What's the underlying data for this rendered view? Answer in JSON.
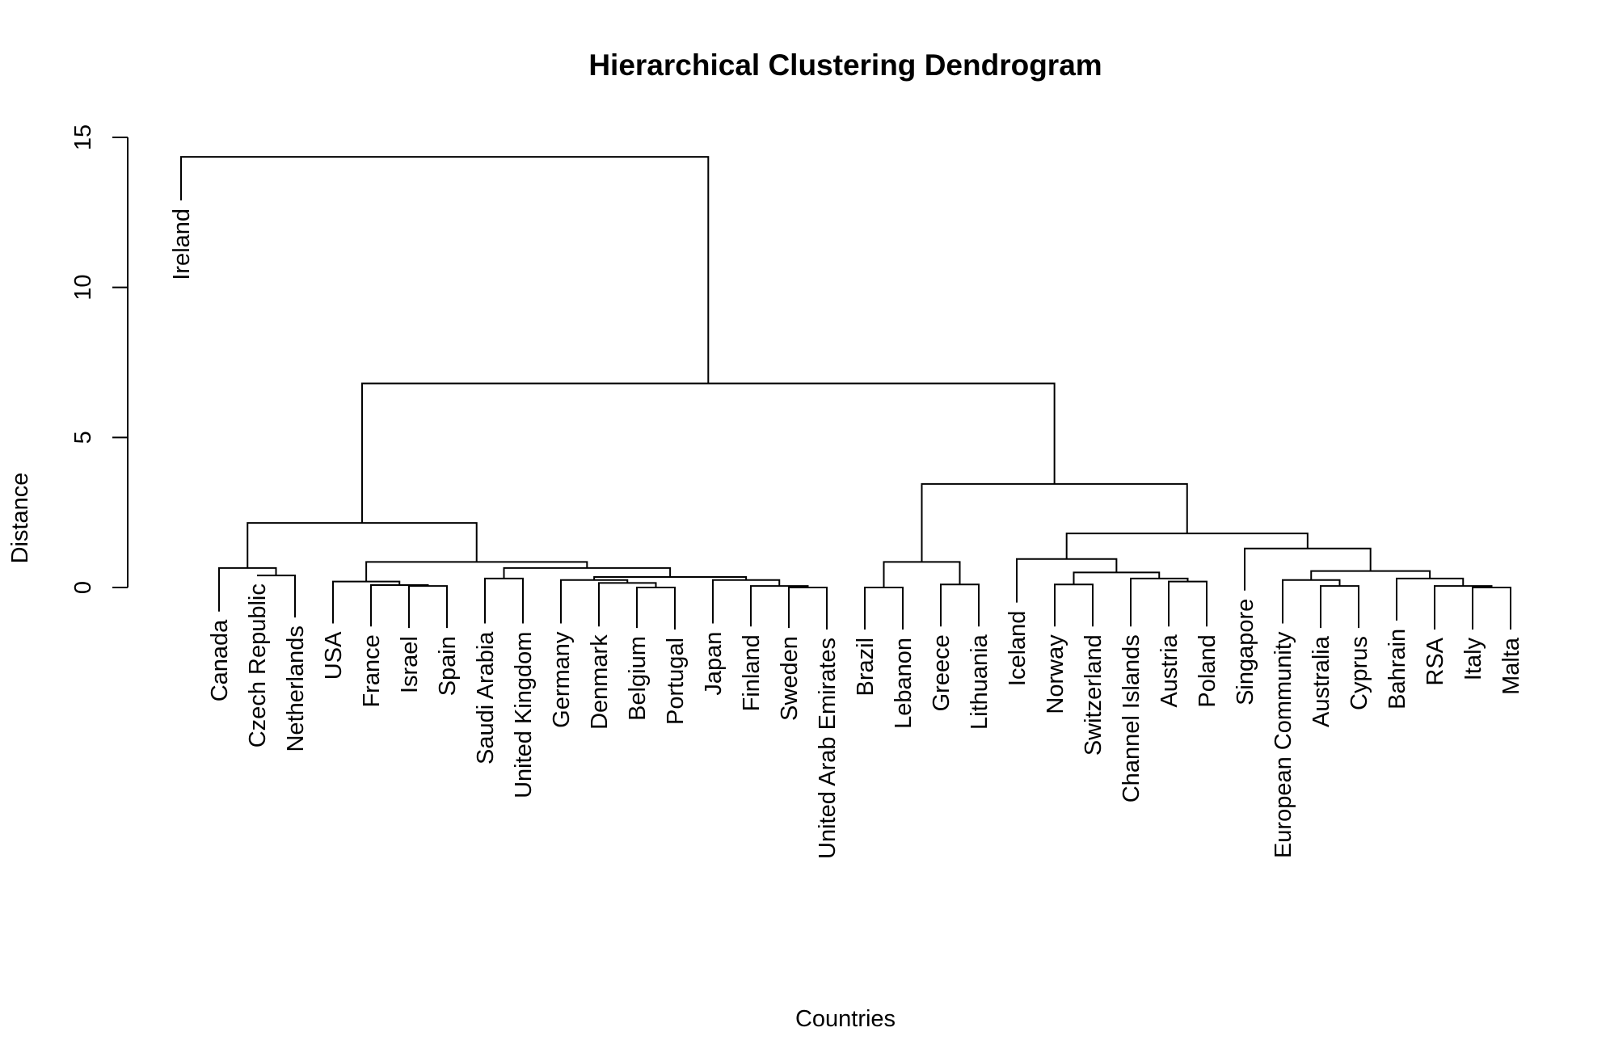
{
  "chart_data": {
    "type": "dendrogram",
    "title": "Hierarchical Clustering Dendrogram",
    "xlabel": "Countries",
    "ylabel": "Distance",
    "ylim": [
      0,
      15
    ],
    "yticks": [
      0,
      5,
      10,
      15
    ],
    "leaves": [
      {
        "label": "Ireland",
        "height": 12.9
      },
      {
        "label": "Canada",
        "height": -0.8
      },
      {
        "label": "Czech Republic",
        "height": 0.4
      },
      {
        "label": "Netherlands",
        "height": -1.0
      },
      {
        "label": "USA",
        "height": -1.2
      },
      {
        "label": "France",
        "height": -1.3
      },
      {
        "label": "Israel",
        "height": -1.35
      },
      {
        "label": "Spain",
        "height": -1.35
      },
      {
        "label": "Saudi Arabia",
        "height": -1.2
      },
      {
        "label": "United Kingdom",
        "height": -1.2
      },
      {
        "label": "Germany",
        "height": -1.2
      },
      {
        "label": "Denmark",
        "height": -1.3
      },
      {
        "label": "Belgium",
        "height": -1.35
      },
      {
        "label": "Portugal",
        "height": -1.4
      },
      {
        "label": "Japan",
        "height": -1.2
      },
      {
        "label": "Finland",
        "height": -1.3
      },
      {
        "label": "Sweden",
        "height": -1.35
      },
      {
        "label": "United Arab Emirates",
        "height": -1.4
      },
      {
        "label": "Brazil",
        "height": -1.4
      },
      {
        "label": "Lebanon",
        "height": -1.4
      },
      {
        "label": "Greece",
        "height": -1.3
      },
      {
        "label": "Lithuania",
        "height": -1.3
      },
      {
        "label": "Iceland",
        "height": -0.5
      },
      {
        "label": "Norway",
        "height": -1.3
      },
      {
        "label": "Switzerland",
        "height": -1.3
      },
      {
        "label": "Channel Islands",
        "height": -1.3
      },
      {
        "label": "Austria",
        "height": -1.3
      },
      {
        "label": "Poland",
        "height": -1.3
      },
      {
        "label": "Singapore",
        "height": -0.1
      },
      {
        "label": "European Community",
        "height": -1.2
      },
      {
        "label": "Australia",
        "height": -1.35
      },
      {
        "label": "Cyprus",
        "height": -1.35
      },
      {
        "label": "Bahrain",
        "height": -1.1
      },
      {
        "label": "RSA",
        "height": -1.4
      },
      {
        "label": "Italy",
        "height": -1.4
      },
      {
        "label": "Malta",
        "height": -1.4
      }
    ],
    "merges": [
      {
        "a": "L2",
        "b": "L3",
        "height": 0.4
      },
      {
        "a": "L1",
        "b": "M0",
        "height": 0.65
      },
      {
        "a": "L6",
        "b": "L7",
        "height": 0.05
      },
      {
        "a": "L5",
        "b": "M2",
        "height": 0.08
      },
      {
        "a": "L4",
        "b": "M3",
        "height": 0.2
      },
      {
        "a": "L8",
        "b": "L9",
        "height": 0.3
      },
      {
        "a": "L12",
        "b": "L13",
        "height": 0.0
      },
      {
        "a": "L11",
        "b": "M6",
        "height": 0.15
      },
      {
        "a": "L10",
        "b": "M7",
        "height": 0.25
      },
      {
        "a": "L16",
        "b": "L17",
        "height": 0.0
      },
      {
        "a": "L15",
        "b": "M9",
        "height": 0.05
      },
      {
        "a": "L14",
        "b": "M10",
        "height": 0.25
      },
      {
        "a": "M8",
        "b": "M11",
        "height": 0.35
      },
      {
        "a": "M5",
        "b": "M12",
        "height": 0.65
      },
      {
        "a": "M4",
        "b": "M13",
        "height": 0.85
      },
      {
        "a": "M1",
        "b": "M14",
        "height": 2.15
      },
      {
        "a": "L18",
        "b": "L19",
        "height": 0.0
      },
      {
        "a": "L20",
        "b": "L21",
        "height": 0.1
      },
      {
        "a": "M16",
        "b": "M17",
        "height": 0.85
      },
      {
        "a": "L23",
        "b": "L24",
        "height": 0.1
      },
      {
        "a": "L26",
        "b": "L27",
        "height": 0.2
      },
      {
        "a": "L25",
        "b": "M20",
        "height": 0.3
      },
      {
        "a": "M19",
        "b": "M21",
        "height": 0.5
      },
      {
        "a": "L22",
        "b": "M22",
        "height": 0.95
      },
      {
        "a": "L30",
        "b": "L31",
        "height": 0.05
      },
      {
        "a": "L29",
        "b": "M24",
        "height": 0.25
      },
      {
        "a": "L34",
        "b": "L35",
        "height": 0.0
      },
      {
        "a": "L33",
        "b": "M26",
        "height": 0.05
      },
      {
        "a": "L32",
        "b": "M27",
        "height": 0.3
      },
      {
        "a": "M25",
        "b": "M28",
        "height": 0.55
      },
      {
        "a": "L28",
        "b": "M29",
        "height": 1.3
      },
      {
        "a": "M23",
        "b": "M30",
        "height": 1.8
      },
      {
        "a": "M18",
        "b": "M31",
        "height": 3.45
      },
      {
        "a": "M15",
        "b": "M32",
        "height": 6.8
      },
      {
        "a": "L0",
        "b": "M33",
        "height": 14.35
      }
    ]
  }
}
